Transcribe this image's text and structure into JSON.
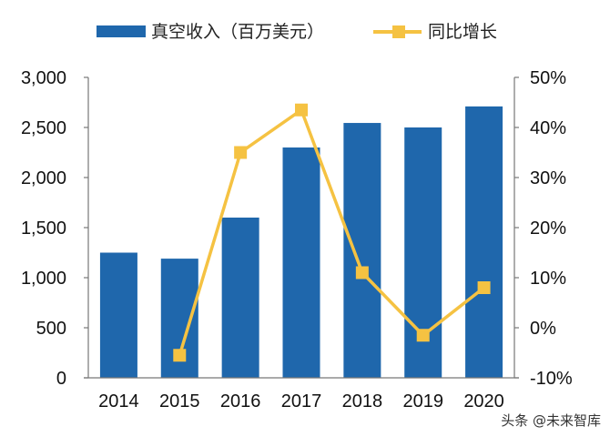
{
  "legend": {
    "bar_label": "真空收入（百万美元）",
    "line_label": "同比增长"
  },
  "watermark": "头条 @未来智库",
  "colors": {
    "bar": "#1F67AC",
    "line": "#F5C242",
    "axis": "#777777"
  },
  "chart_data": {
    "type": "bar+line",
    "title": "",
    "categories": [
      "2014",
      "2015",
      "2016",
      "2017",
      "2018",
      "2019",
      "2020"
    ],
    "series": [
      {
        "name": "真空收入（百万美元）",
        "type": "bar",
        "axis": "left",
        "values": [
          1250,
          1190,
          1600,
          2300,
          2545,
          2500,
          2710
        ]
      },
      {
        "name": "同比增长",
        "type": "line",
        "axis": "right",
        "unit": "%",
        "values": [
          null,
          -5.5,
          35,
          43.5,
          11,
          -1.5,
          8
        ]
      }
    ],
    "left_axis": {
      "ylim": [
        0,
        3000
      ],
      "ticks": [
        0,
        500,
        1000,
        1500,
        2000,
        2500,
        3000
      ],
      "tick_labels": [
        "0",
        "500",
        "1,000",
        "1,500",
        "2,000",
        "2,500",
        "3,000"
      ]
    },
    "right_axis": {
      "ylim": [
        -10,
        50
      ],
      "ticks": [
        -10,
        0,
        10,
        20,
        30,
        40,
        50
      ],
      "tick_labels": [
        "-10%",
        "0%",
        "10%",
        "20%",
        "30%",
        "40%",
        "50%"
      ]
    },
    "xlabel": "",
    "ylabel": "",
    "grid": false,
    "legend_position": "top"
  }
}
